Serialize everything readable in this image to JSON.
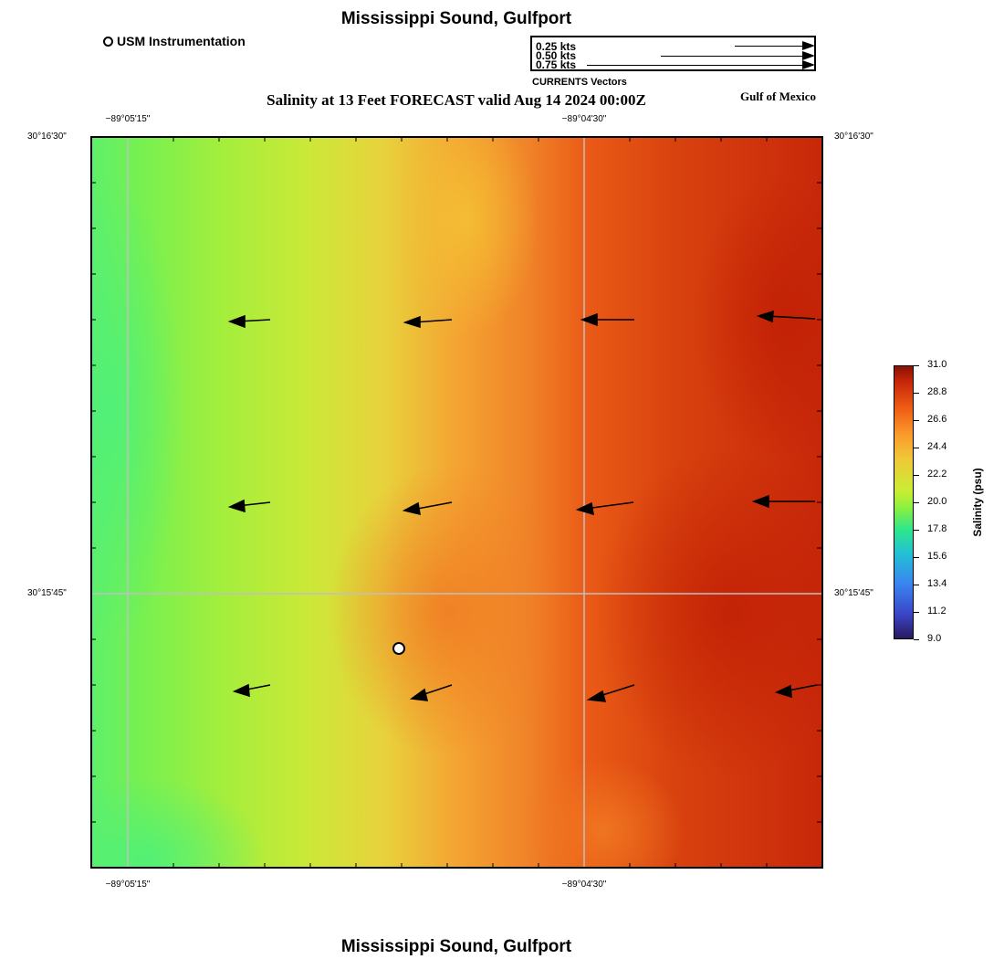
{
  "title_top": "Mississippi Sound, Gulfport",
  "title_bottom": "Mississippi Sound, Gulfport",
  "legend": {
    "station_label": "USM Instrumentation",
    "vector_labels": [
      "0.25 kts",
      "0.50 kts",
      "0.75 kts"
    ],
    "vector_values_kts": [
      0.25,
      0.5,
      0.75
    ],
    "vectors_caption": "CURRENTS Vectors"
  },
  "subtitle": "Salinity at 13 Feet FORECAST valid Aug 14 2024 00:00Z",
  "region_label": "Gulf of Mexico",
  "axes": {
    "top_x_ticks": [
      "−89°05'15\"",
      "−89°04'30\""
    ],
    "bottom_x_ticks": [
      "−89°05'15\"",
      "−89°04'30\""
    ],
    "left_y_ticks": [
      "30°16'30\"",
      "30°15'45\""
    ],
    "right_y_ticks": [
      "30°16'30\"",
      "30°15'45\""
    ]
  },
  "colorbar": {
    "title": "Salinity (psu)",
    "min": 9.0,
    "max": 31.0,
    "tick_labels": [
      "31.0",
      "28.8",
      "26.6",
      "24.4",
      "22.2",
      "20.0",
      "17.8",
      "15.6",
      "13.4",
      "11.2",
      "9.0"
    ]
  },
  "colors": {
    "low_green": "#5ef06a",
    "mid_yellow": "#e8d23c",
    "orange": "#f08a28",
    "high_red": "#c8280a",
    "gridline": "#c0c0c0"
  }
}
